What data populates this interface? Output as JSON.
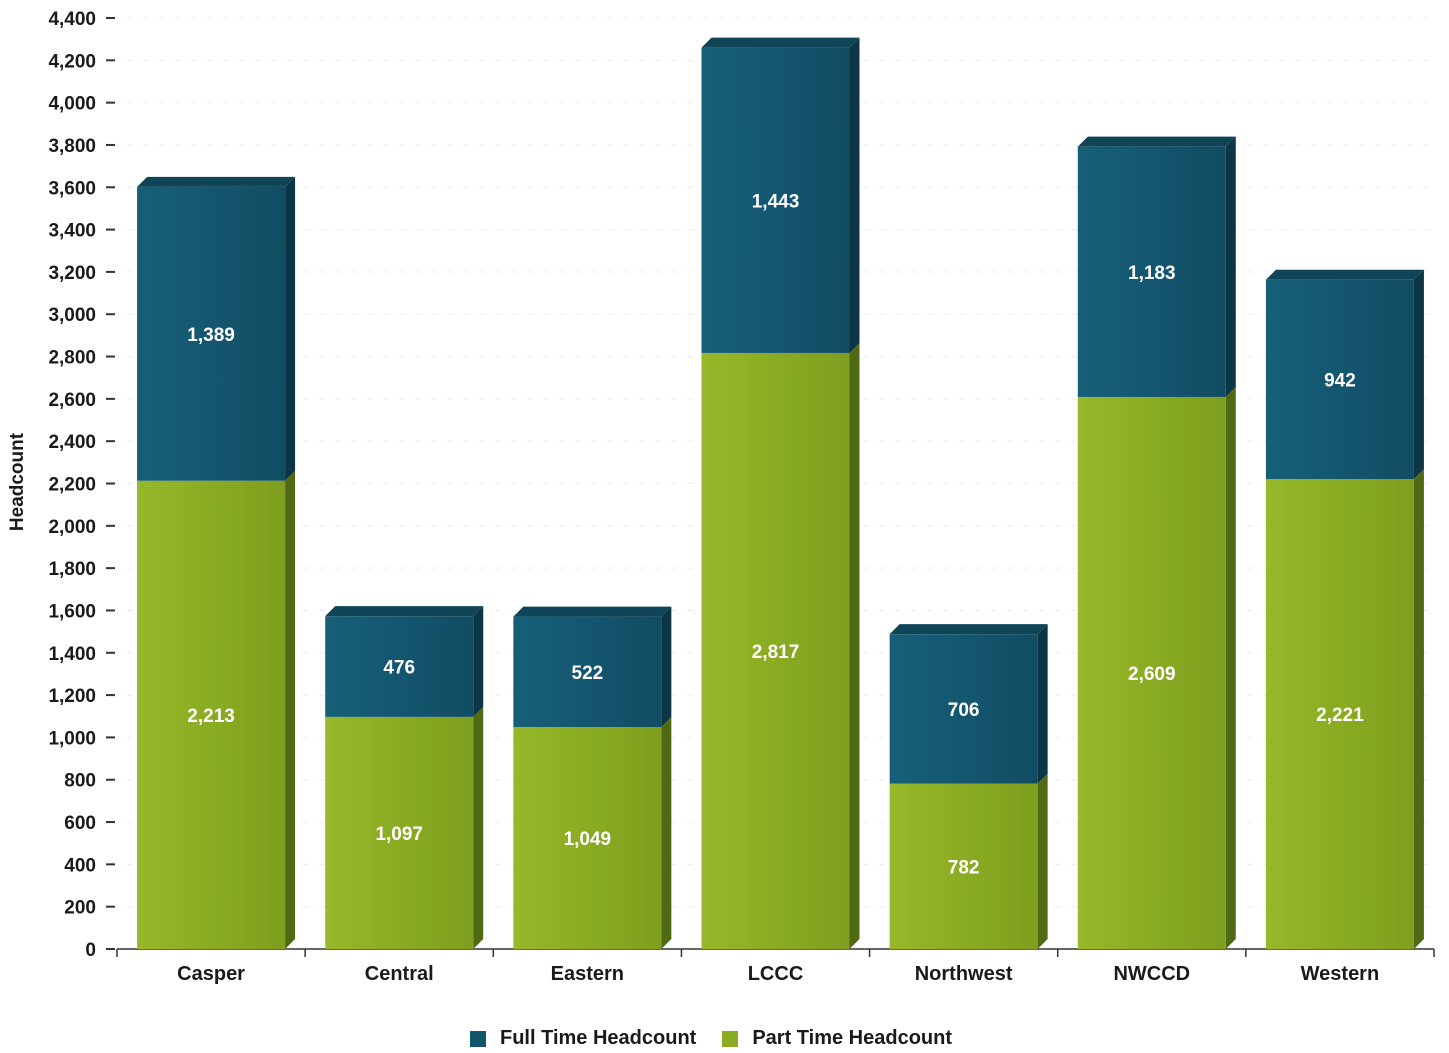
{
  "chart_data": {
    "type": "bar",
    "stacked": true,
    "categories": [
      "Casper",
      "Central",
      "Eastern",
      "LCCC",
      "Northwest",
      "NWCCD",
      "Western"
    ],
    "series": [
      {
        "name": "Part Time Headcount",
        "values": [
          2213,
          1097,
          1049,
          2817,
          782,
          2609,
          2221
        ],
        "labels": [
          "2,213",
          "1,097",
          "1,049",
          "2,817",
          "782",
          "2,609",
          "2,221"
        ],
        "color": "#8bab23"
      },
      {
        "name": "Full Time Headcount",
        "values": [
          1389,
          476,
          522,
          1443,
          706,
          1183,
          942
        ],
        "labels": [
          "1,389",
          "476",
          "522",
          "1,443",
          "706",
          "1,183",
          "942"
        ],
        "color": "#13556b"
      }
    ],
    "ylabel": "Headcount",
    "xlabel": "",
    "ylim": [
      0,
      4400
    ],
    "yticks": [
      0,
      200,
      400,
      600,
      800,
      1000,
      1200,
      1400,
      1600,
      1800,
      2000,
      2200,
      2400,
      2600,
      2800,
      3000,
      3200,
      3400,
      3600,
      3800,
      4000,
      4200,
      4400
    ],
    "ytick_labels": [
      "0",
      "200",
      "400",
      "600",
      "800",
      "1,000",
      "1,200",
      "1,400",
      "1,600",
      "1,800",
      "2,000",
      "2,200",
      "2,400",
      "2,600",
      "2,800",
      "3,000",
      "3,200",
      "3,400",
      "3,600",
      "3,800",
      "4,000",
      "4,200",
      "4,400"
    ],
    "grid": false,
    "style": "3d",
    "legend_position": "bottom"
  },
  "legend": {
    "full_time": "Full Time Headcount",
    "part_time": "Part Time Headcount",
    "full_time_color": "#13556b",
    "part_time_color": "#8bab23"
  }
}
